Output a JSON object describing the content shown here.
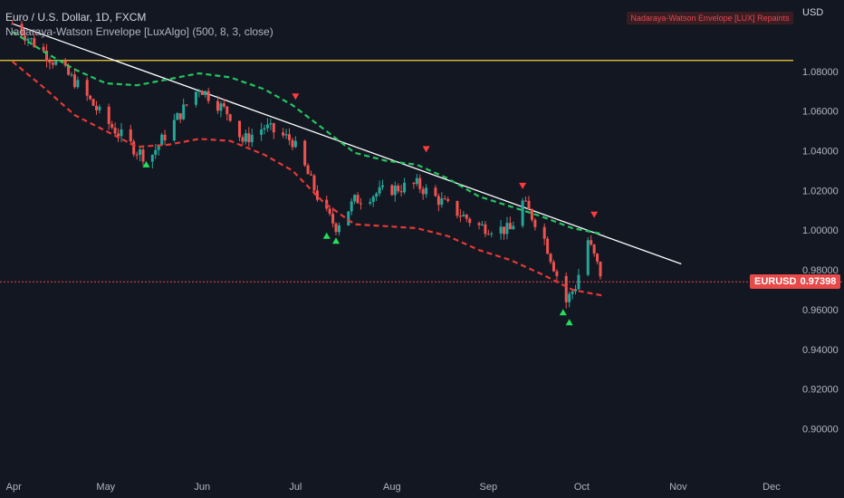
{
  "header": {
    "title": "Euro / U.S. Dollar, 1D, FXCM",
    "indicator": "Nadaraya-Watson Envelope [LuxAlgo] (500, 8, 3, close)",
    "currency": "USD",
    "repaint_notice": "Nadaraya-Watson Envelope [LUX] Repaints"
  },
  "price_tag": {
    "symbol": "EURUSD",
    "value": "0.97398"
  },
  "colors": {
    "background": "#131722",
    "bull": "#26a69a",
    "bear": "#ef5350",
    "upper_band": "#22c55e",
    "lower_band": "#e53935",
    "trendline": "#ffffff",
    "resistance": "#f2d13b",
    "last_price": "#e84a4a"
  },
  "chart_data": {
    "type": "line",
    "title": "Euro / U.S. Dollar, 1D, FXCM",
    "x_ticks": [
      "Apr",
      "May",
      "Jun",
      "Jul",
      "Aug",
      "Sep",
      "Oct",
      "Nov",
      "Dec"
    ],
    "y_ticks": [
      "1.08000",
      "1.06000",
      "1.04000",
      "1.02000",
      "1.00000",
      "0.98000",
      "0.96000",
      "0.94000",
      "0.92000",
      "0.90000"
    ],
    "ylim": [
      0.887,
      1.105
    ],
    "xlim": [
      "2022-03-28",
      "2022-12-08"
    ],
    "grid": false,
    "horizontal_lines": [
      {
        "name": "resistance",
        "y": 1.0855
      },
      {
        "name": "last price",
        "y": 0.97398
      }
    ],
    "trendline": {
      "start": [
        "2022-04-01",
        1.104
      ],
      "end": [
        "2022-11-02",
        0.983
      ]
    },
    "series": [
      {
        "name": "EURUSD close",
        "x": [
          "2022-04-01",
          "2022-04-11",
          "2022-04-21",
          "2022-05-01",
          "2022-05-11",
          "2022-05-15",
          "2022-05-21",
          "2022-05-31",
          "2022-06-10",
          "2022-06-14",
          "2022-06-21",
          "2022-06-30",
          "2022-07-05",
          "2022-07-10",
          "2022-07-14",
          "2022-07-20",
          "2022-07-30",
          "2022-08-09",
          "2022-08-19",
          "2022-08-29",
          "2022-09-08",
          "2022-09-12",
          "2022-09-18",
          "2022-09-26",
          "2022-09-29",
          "2022-10-03",
          "2022-10-08"
        ],
        "values": [
          1.104,
          1.09,
          1.075,
          1.055,
          1.04,
          1.036,
          1.05,
          1.072,
          1.058,
          1.045,
          1.052,
          1.045,
          1.028,
          1.01,
          1.002,
          1.015,
          1.02,
          1.023,
          1.012,
          1.002,
          1.0,
          1.014,
          1.0,
          0.964,
          0.972,
          0.995,
          0.974
        ]
      },
      {
        "name": "Upper envelope",
        "x": [
          "2022-04-01",
          "2022-04-11",
          "2022-04-21",
          "2022-05-01",
          "2022-05-11",
          "2022-05-21",
          "2022-05-31",
          "2022-06-10",
          "2022-06-21",
          "2022-06-30",
          "2022-07-10",
          "2022-07-20",
          "2022-07-30",
          "2022-08-09",
          "2022-08-19",
          "2022-08-29",
          "2022-09-08",
          "2022-09-18",
          "2022-09-28",
          "2022-10-08"
        ],
        "values": [
          1.1,
          1.09,
          1.081,
          1.074,
          1.073,
          1.076,
          1.079,
          1.077,
          1.071,
          1.063,
          1.051,
          1.039,
          1.035,
          1.033,
          1.026,
          1.017,
          1.012,
          1.007,
          1.001,
          0.998
        ]
      },
      {
        "name": "Lower envelope",
        "x": [
          "2022-04-01",
          "2022-04-11",
          "2022-04-21",
          "2022-05-01",
          "2022-05-11",
          "2022-05-21",
          "2022-05-31",
          "2022-06-10",
          "2022-06-21",
          "2022-06-30",
          "2022-07-10",
          "2022-07-20",
          "2022-07-30",
          "2022-08-09",
          "2022-08-19",
          "2022-08-29",
          "2022-09-08",
          "2022-09-18",
          "2022-09-28",
          "2022-10-08"
        ],
        "values": [
          1.085,
          1.072,
          1.058,
          1.05,
          1.042,
          1.043,
          1.046,
          1.045,
          1.038,
          1.03,
          1.014,
          1.003,
          1.002,
          1.001,
          0.997,
          0.99,
          0.985,
          0.978,
          0.97,
          0.967
        ]
      }
    ],
    "signals": [
      {
        "type": "buy",
        "date": "2022-05-14",
        "price": 1.033
      },
      {
        "type": "sell",
        "date": "2022-07-01",
        "price": 1.0675
      },
      {
        "type": "buy",
        "date": "2022-07-11",
        "price": 0.997
      },
      {
        "type": "buy",
        "date": "2022-07-14",
        "price": 0.9945
      },
      {
        "type": "sell",
        "date": "2022-08-12",
        "price": 1.041
      },
      {
        "type": "sell",
        "date": "2022-09-12",
        "price": 1.0225
      },
      {
        "type": "buy",
        "date": "2022-09-25",
        "price": 0.9585
      },
      {
        "type": "buy",
        "date": "2022-09-27",
        "price": 0.9535
      },
      {
        "type": "sell",
        "date": "2022-10-05",
        "price": 1.008
      }
    ]
  }
}
